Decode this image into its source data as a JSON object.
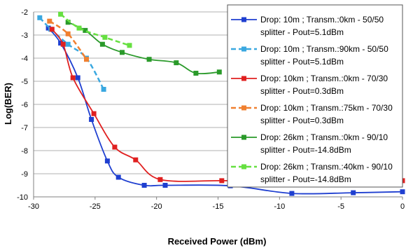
{
  "chart_data": {
    "type": "line",
    "xlabel": "Received Power (dBm)",
    "ylabel": "Log(BER)",
    "xlim": [
      -30,
      0
    ],
    "ylim": [
      -10,
      -2
    ],
    "xticks": [
      "-30",
      "-25",
      "-20",
      "-15",
      "-10",
      "-5",
      "0"
    ],
    "yticks": [
      "-2",
      "-3",
      "-4",
      "-5",
      "-6",
      "-7",
      "-8",
      "-9",
      "-10"
    ],
    "grid": "horizontal",
    "legend": "top-right",
    "series": [
      {
        "name_line1": "Drop: 10m ; Transm.:0km - 50/50",
        "name_line2": "splitter - Pout=5.1dBm",
        "color": "#1f3fd0",
        "dashed": false,
        "x": [
          -28.8,
          -27.8,
          -26.4,
          -25.3,
          -24.0,
          -23.1,
          -21.0,
          -19.3
        ],
        "y": [
          -2.7,
          -3.35,
          -4.85,
          -6.65,
          -8.45,
          -9.15,
          -9.5,
          -9.5
        ],
        "x_tail": [
          -14.0,
          -9.0,
          -4.0,
          0.0
        ],
        "y_tail": [
          -9.52,
          -9.85,
          -9.82,
          -9.78
        ],
        "_note": "x/y are the series points"
      },
      {
        "name_line1": "Drop: 10m ; Transm.:90km - 50/50",
        "name_line2": "splitter - Pout=5.1dBm",
        "color": "#3aa8e0",
        "dashed": true,
        "x": [
          -29.5,
          -28.6,
          -27.2,
          -25.7,
          -24.3
        ],
        "y": [
          -2.25,
          -2.75,
          -3.4,
          -4.0,
          -5.35
        ]
      },
      {
        "name_line1": "Drop: 10km ; Transm.:0km - 70/30",
        "name_line2": "splitter - Pout=0.3dBm",
        "color": "#e02020",
        "dashed": false,
        "x": [
          -28.5,
          -27.6,
          -26.8,
          -25.1,
          -23.4,
          -21.7,
          -19.7,
          -14.7,
          -9.6,
          -4.6,
          0.0
        ],
        "y": [
          -2.75,
          -3.4,
          -4.85,
          -6.4,
          -7.85,
          -8.4,
          -9.25,
          -9.3,
          -9.3,
          -9.4,
          -9.3
        ]
      },
      {
        "name_line1": "Drop: 10km ; Transm.:75km - 70/30",
        "name_line2": "splitter - Pout=0.3dBm",
        "color": "#f08030",
        "dashed": true,
        "x": [
          -28.7,
          -27.2,
          -25.7
        ],
        "y": [
          -2.4,
          -2.95,
          -4.05
        ]
      },
      {
        "name_line1": "Drop: 26km ; Transm.:0km - 90/10",
        "name_line2": "splitter - Pout=-14.8dBm",
        "color": "#2a9a2a",
        "dashed": false,
        "x": [
          -27.2,
          -25.8,
          -24.4,
          -22.8,
          -20.6,
          -18.4,
          -16.8,
          -14.9
        ],
        "y": [
          -2.45,
          -2.8,
          -3.4,
          -3.75,
          -4.05,
          -4.2,
          -4.65,
          -4.6
        ]
      },
      {
        "name_line1": "Drop: 26km ; Transm.:40km - 90/10",
        "name_line2": "splitter - Pout=-14.8dBm",
        "color": "#66e040",
        "dashed": true,
        "x": [
          -27.8,
          -26.3,
          -24.2,
          -22.2
        ],
        "y": [
          -2.1,
          -2.7,
          -3.1,
          -3.45
        ]
      }
    ]
  }
}
